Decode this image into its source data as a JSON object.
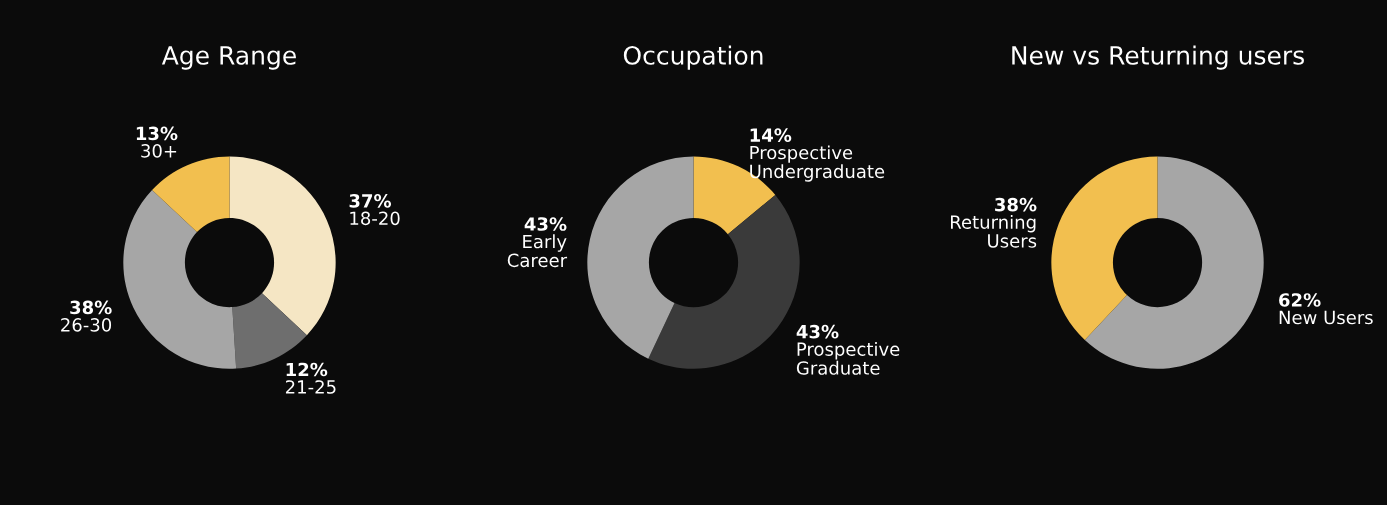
{
  "chart_data": [
    {
      "type": "donut",
      "title": "Age Range",
      "categories": [
        "18-20",
        "21-25",
        "26-30",
        "30+"
      ],
      "values": [
        37,
        12,
        38,
        13
      ],
      "value_labels": [
        "37%",
        "12%",
        "38%",
        "13%"
      ],
      "colors": [
        "#f5e6c4",
        "#6e6e6e",
        "#a6a6a6",
        "#f2bf4f"
      ]
    },
    {
      "type": "donut",
      "title": "Occupation",
      "categories": [
        "Prospective\nUndergraduate",
        "Prospective\nGraduate",
        "Early\nCareer"
      ],
      "values": [
        14,
        43,
        43
      ],
      "value_labels": [
        "14%",
        "43%",
        "43%"
      ],
      "colors": [
        "#f2bf4f",
        "#3a3a3a",
        "#a6a6a6"
      ]
    },
    {
      "type": "donut",
      "title": "New vs Returning users",
      "categories": [
        "New Users",
        "Returning\nUsers"
      ],
      "values": [
        62,
        38
      ],
      "value_labels": [
        "62%",
        "38%"
      ],
      "colors": [
        "#a6a6a6",
        "#f2bf4f"
      ]
    }
  ]
}
